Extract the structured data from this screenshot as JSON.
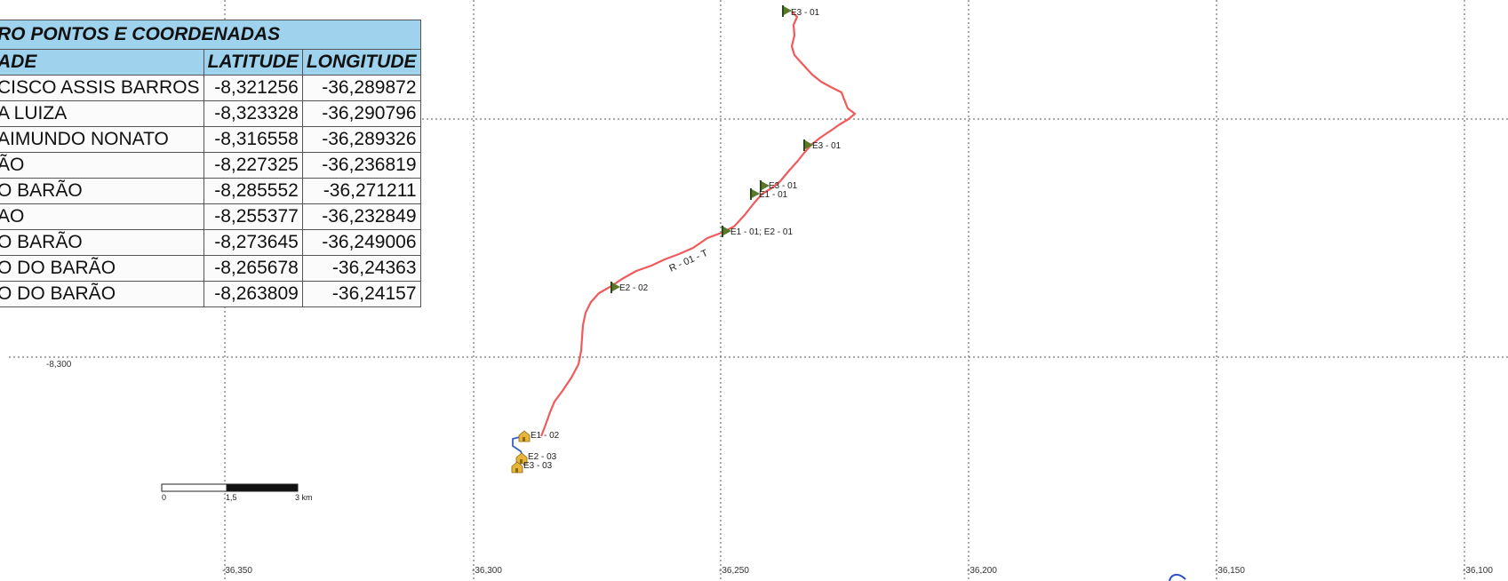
{
  "table": {
    "title": "RO PONTOS E COORDENADAS",
    "headers": {
      "place": "ADE",
      "latitude": "LATITUDE",
      "longitude": "LONGITUDE"
    },
    "rows": [
      {
        "place": "CISCO ASSIS BARROS",
        "latitude": "-8,321256",
        "longitude": "-36,289872"
      },
      {
        "place": "A LUIZA",
        "latitude": "-8,323328",
        "longitude": "-36,290796"
      },
      {
        "place": "AIMUNDO NONATO",
        "latitude": "-8,316558",
        "longitude": "-36,289326"
      },
      {
        "place": "ÃO",
        "latitude": "-8,227325",
        "longitude": "-36,236819"
      },
      {
        "place": "O BARÃO",
        "latitude": "-8,285552",
        "longitude": "-36,271211"
      },
      {
        "place": "AO",
        "latitude": "-8,255377",
        "longitude": "-36,232849"
      },
      {
        "place": "O BARÃO",
        "latitude": "-8,273645",
        "longitude": "-36,249006"
      },
      {
        "place": "O DO BARÃO",
        "latitude": "-8,265678",
        "longitude": "-36,24363"
      },
      {
        "place": "O DO BARÃO",
        "latitude": "-8,263809",
        "longitude": "-36,24157"
      }
    ]
  },
  "map": {
    "grid_longitude_labels": [
      "-36,350",
      "-36,300",
      "-36,250",
      "-36,200",
      "-36,150",
      "-36,100"
    ],
    "grid_latitude_labels": [
      "-8,300"
    ],
    "route_label": "R - 01 - T",
    "waypoints": [
      {
        "label": "E3 - 01",
        "icon": "green-flag-icon"
      },
      {
        "label": "E3 - 01",
        "icon": "green-flag-icon"
      },
      {
        "label": "E3 - 01",
        "icon": "green-flag-icon"
      },
      {
        "label": "E1 - 01",
        "icon": "green-flag-icon"
      },
      {
        "label": "E1 - 01; E2 - 01",
        "icon": "green-flag-icon"
      },
      {
        "label": "E2 - 02",
        "icon": "green-flag-icon"
      },
      {
        "label": "E1 - 02",
        "icon": "yellow-house-icon"
      },
      {
        "label": "E2 - 03",
        "icon": "yellow-house-icon"
      },
      {
        "label": "E3 - 03",
        "icon": "yellow-house-icon"
      }
    ],
    "scale_bar": {
      "labels": [
        "0",
        "1,5",
        "3 km"
      ]
    },
    "colors": {
      "route_main": "#f05a5a",
      "route_branch": "#3a5fc8",
      "table_header": "#9fd2ec",
      "grid": "#555555"
    }
  }
}
